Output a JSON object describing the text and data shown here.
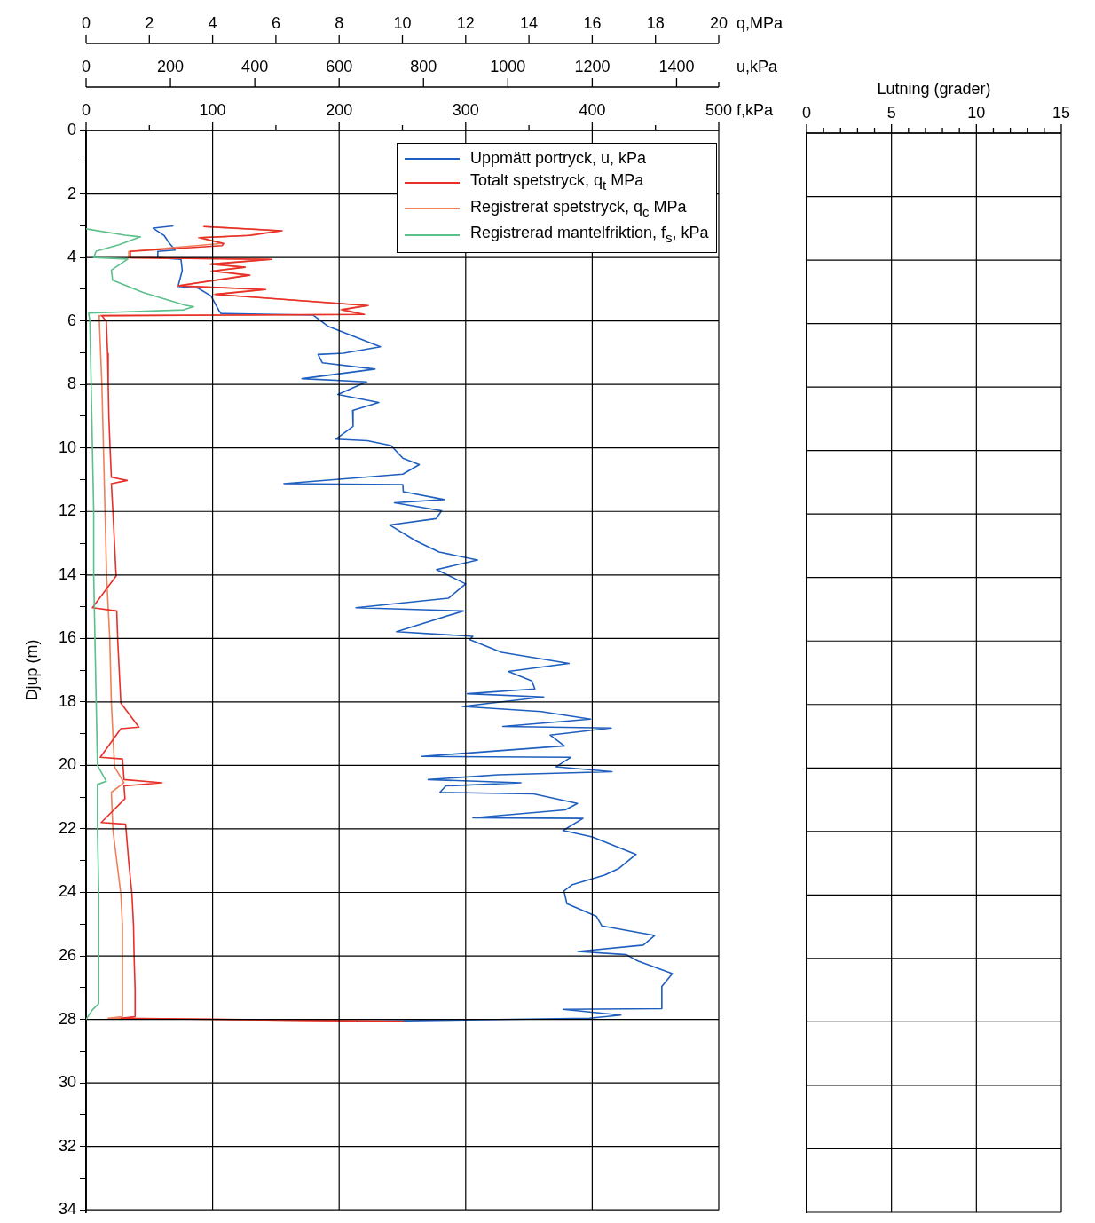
{
  "chart_data": [
    {
      "type": "line",
      "xlabel": "u,kPa",
      "xlim": [
        0,
        1500
      ],
      "xticks": [
        0,
        200,
        400,
        600,
        800,
        1000,
        1200,
        1400,
        {
          "value": 1500,
          "label": null
        }
      ],
      "ylim": [
        34,
        0
      ],
      "yticks": [
        0,
        2,
        4,
        6,
        8,
        10,
        12,
        14,
        16,
        18,
        20,
        22,
        24,
        26,
        28,
        30,
        32,
        34
      ],
      "tick_labels": "x",
      "legend": "top right",
      "marker": "none",
      "line_style": "solid",
      "series": [
        {
          "name": "Uppmätt portryck, u, kPa",
          "color": "#1f5fbf",
          "x": [
            207,
            159,
            185,
            195,
            211,
            170,
            170,
            225,
            228,
            222,
            218,
            265,
            296,
            315,
            320,
            538,
            574,
            698,
            610,
            550,
            560,
            685,
            512,
            665,
            597,
            694,
            632,
            633,
            592,
            667,
            723,
            751,
            790,
            751,
            469,
            751,
            752,
            849,
            731,
            843,
            830,
            720,
            782,
            837,
            928,
            831,
            900,
            859,
            640,
            895,
            736,
            917,
            910,
            985,
            1145,
            1001,
            1057,
            1064,
            904,
            1085,
            892,
            1079,
            1196,
            988,
            1245,
            1100,
            1134,
            796,
            1149,
            1114,
            1247,
            977,
            811,
            1031,
            853,
            839,
            1061,
            1165,
            1136,
            917,
            1178,
            1131,
            1200,
            1304,
            1262,
            1229,
            1153,
            1133,
            1140,
            1210,
            1223,
            1348,
            1321,
            1166,
            1281,
            1308,
            1390,
            1365,
            1365,
            1131,
            1268,
            1194,
            640
          ],
          "values": [
            3.0,
            3.07,
            3.3,
            3.5,
            3.76,
            3.8,
            4.0,
            4.05,
            4.4,
            4.7,
            4.9,
            4.95,
            5.2,
            5.66,
            5.75,
            5.8,
            6.16,
            6.8,
            7.0,
            7.04,
            7.3,
            7.5,
            7.8,
            7.9,
            8.3,
            8.55,
            8.8,
            9.3,
            9.7,
            9.75,
            9.9,
            10.3,
            10.5,
            10.8,
            11.1,
            11.13,
            11.35,
            11.6,
            11.7,
            11.95,
            12.2,
            12.4,
            12.9,
            13.25,
            13.5,
            13.8,
            14.25,
            14.7,
            15.0,
            15.1,
            15.75,
            15.9,
            16.0,
            16.4,
            16.75,
            17.0,
            17.3,
            17.55,
            17.7,
            17.8,
            18.1,
            18.26,
            18.5,
            18.73,
            18.78,
            19.0,
            19.34,
            19.67,
            19.7,
            20.0,
            20.15,
            20.25,
            20.4,
            20.5,
            20.6,
            20.8,
            20.85,
            21.15,
            21.35,
            21.6,
            21.62,
            22.0,
            22.2,
            22.75,
            23.2,
            23.4,
            23.7,
            23.9,
            24.3,
            24.7,
            25.0,
            25.3,
            25.6,
            25.8,
            25.9,
            26.1,
            26.5,
            26.9,
            27.6,
            27.62,
            27.8,
            27.9,
            28.0
          ]
        }
      ]
    },
    {
      "type": "line",
      "xlabel": "q,MPa",
      "xlim": [
        0,
        20
      ],
      "xticks": [
        0,
        2,
        4,
        6,
        8,
        10,
        12,
        14,
        16,
        18,
        20
      ],
      "ylim": [
        34,
        0
      ],
      "yticks": [
        0,
        2,
        4,
        6,
        8,
        10,
        12,
        14,
        16,
        18,
        20,
        22,
        24,
        26,
        28,
        30,
        32,
        34
      ],
      "tick_labels": "x",
      "legend": "top right",
      "marker": "none",
      "line_style": "solid",
      "series": [
        {
          "name": "Totalt spetstryck, q$_{t}$  MPa",
          "color": "#e8302a",
          "x": [
            3.72,
            6.2,
            5.2,
            3.6,
            4.35,
            4.3,
            1.4,
            1.4,
            5.87,
            3.96,
            5.03,
            4.0,
            5.18,
            2.92,
            5.68,
            4.1,
            8.92,
            8.1,
            8.8,
            0.5,
            0.64,
            0.68,
            0.7,
            0.72,
            0.76,
            0.8,
            1.3,
            0.8,
            0.85,
            0.9,
            0.95,
            0.2,
            0.97,
            1.0,
            1.05,
            1.1,
            1.67,
            1.1,
            0.45,
            1.15,
            1.2,
            2.4,
            1.2,
            1.23,
            0.48,
            1.25,
            1.35,
            1.45,
            1.5,
            1.52,
            1.55,
            1.55,
            1.1,
            10.05
          ],
          "values": [
            3.02,
            3.15,
            3.3,
            3.37,
            3.55,
            3.62,
            3.8,
            4.0,
            4.05,
            4.2,
            4.3,
            4.42,
            4.55,
            4.88,
            5.0,
            5.15,
            5.5,
            5.63,
            5.78,
            5.82,
            6.0,
            7.0,
            8.0,
            9.0,
            10.0,
            10.9,
            11.0,
            11.1,
            12.0,
            13.0,
            14.0,
            15.0,
            15.1,
            16.0,
            17.0,
            18.0,
            18.75,
            18.8,
            19.7,
            19.75,
            20.4,
            20.5,
            20.6,
            21.0,
            21.75,
            21.8,
            23.0,
            24.0,
            25.0,
            26.0,
            27.0,
            27.85,
            27.9,
            28.0
          ]
        },
        {
          "name": "Registrerat spetstryck, q$_{c}$  MPa",
          "color": "#f0805a",
          "x": [
            3.7,
            6.1,
            5.1,
            3.55,
            4.3,
            1.35,
            1.35,
            5.8,
            3.9,
            5.0,
            3.95,
            5.1,
            2.9,
            5.6,
            4.05,
            8.85,
            8.05,
            8.7,
            0.4,
            0.42,
            0.5,
            0.55,
            0.6,
            0.65,
            0.7,
            0.75,
            0.8,
            0.9,
            1.2,
            0.8,
            0.85,
            1.1,
            1.15,
            1.15,
            0.7,
            9.8
          ],
          "values": [
            3.02,
            3.15,
            3.3,
            3.37,
            3.55,
            3.8,
            4.0,
            4.05,
            4.2,
            4.3,
            4.42,
            4.55,
            4.88,
            5.0,
            5.15,
            5.5,
            5.63,
            5.78,
            5.82,
            6.0,
            8.0,
            10.0,
            12.0,
            14.0,
            15.0,
            16.0,
            18.0,
            20.0,
            20.5,
            20.8,
            22.0,
            24.0,
            25.0,
            27.85,
            27.9,
            28.0
          ]
        }
      ]
    },
    {
      "type": "line",
      "xlabel": "f,kPa",
      "ylabel": "Djup (m)",
      "xlim": [
        0,
        500
      ],
      "xticks": [
        0,
        {
          "value": 50,
          "label": null
        },
        100,
        {
          "value": 150,
          "label": null
        },
        200,
        {
          "value": 250,
          "label": null
        },
        300,
        {
          "value": 350,
          "label": null
        },
        400,
        {
          "value": 450,
          "label": null
        },
        500
      ],
      "ylim": [
        34,
        0
      ],
      "yticks": [
        0,
        {
          "value": 1,
          "label": null
        },
        2,
        {
          "value": 3,
          "label": null
        },
        4,
        {
          "value": 5,
          "label": null
        },
        6,
        {
          "value": 7,
          "label": null
        },
        8,
        {
          "value": 9,
          "label": null
        },
        10,
        {
          "value": 11,
          "label": null
        },
        12,
        {
          "value": 13,
          "label": null
        },
        14,
        {
          "value": 15,
          "label": null
        },
        16,
        {
          "value": 17,
          "label": null
        },
        18,
        {
          "value": 19,
          "label": null
        },
        20,
        {
          "value": 21,
          "label": null
        },
        22,
        {
          "value": 23,
          "label": null
        },
        24,
        {
          "value": 25,
          "label": null
        },
        26,
        {
          "value": 27,
          "label": null
        },
        28,
        {
          "value": 29,
          "label": null
        },
        30,
        {
          "value": 31,
          "label": null
        },
        32,
        {
          "value": 33,
          "label": null
        },
        34
      ],
      "grid": true,
      "legend": "top right",
      "marker": "none",
      "line_style": "solid",
      "series": [
        {
          "name": "Registrerad mantelfriktion, f$_{s}$, kPa",
          "color": "#5cc08a",
          "x": [
            0,
            31,
            43,
            26,
            8,
            6,
            33,
            20,
            21,
            45,
            78,
            85,
            77,
            2,
            3,
            4,
            5,
            6,
            6,
            7,
            8,
            9,
            16,
            9,
            9,
            10,
            10,
            5,
            0
          ],
          "values": [
            3.1,
            3.3,
            3.35,
            3.6,
            3.8,
            4.0,
            4.05,
            4.4,
            4.72,
            5.1,
            5.5,
            5.55,
            5.65,
            5.75,
            6.0,
            8.0,
            10.0,
            12.0,
            14.0,
            16.0,
            18.0,
            20.0,
            20.5,
            20.6,
            22.0,
            24.0,
            27.5,
            27.7,
            28.0
          ]
        }
      ]
    },
    {
      "type": "line",
      "xlabel": "Lutning (grader)",
      "xlim": [
        0,
        15
      ],
      "xticks": [
        0,
        {
          "value": 1,
          "label": null
        },
        {
          "value": 2,
          "label": null
        },
        {
          "value": 3,
          "label": null
        },
        {
          "value": 4,
          "label": null
        },
        5,
        {
          "value": 6,
          "label": null
        },
        {
          "value": 7,
          "label": null
        },
        {
          "value": 8,
          "label": null
        },
        {
          "value": 9,
          "label": null
        },
        10,
        {
          "value": 11,
          "label": null
        },
        {
          "value": 12,
          "label": null
        },
        {
          "value": 13,
          "label": null
        },
        {
          "value": 14,
          "label": null
        },
        15
      ],
      "ylim": [
        34,
        0
      ],
      "yticks": [
        0,
        2,
        4,
        6,
        8,
        10,
        12,
        14,
        16,
        18,
        20,
        22,
        24,
        26,
        28,
        30,
        32,
        34
      ],
      "grid": true,
      "tick_labels": "x"
    }
  ]
}
